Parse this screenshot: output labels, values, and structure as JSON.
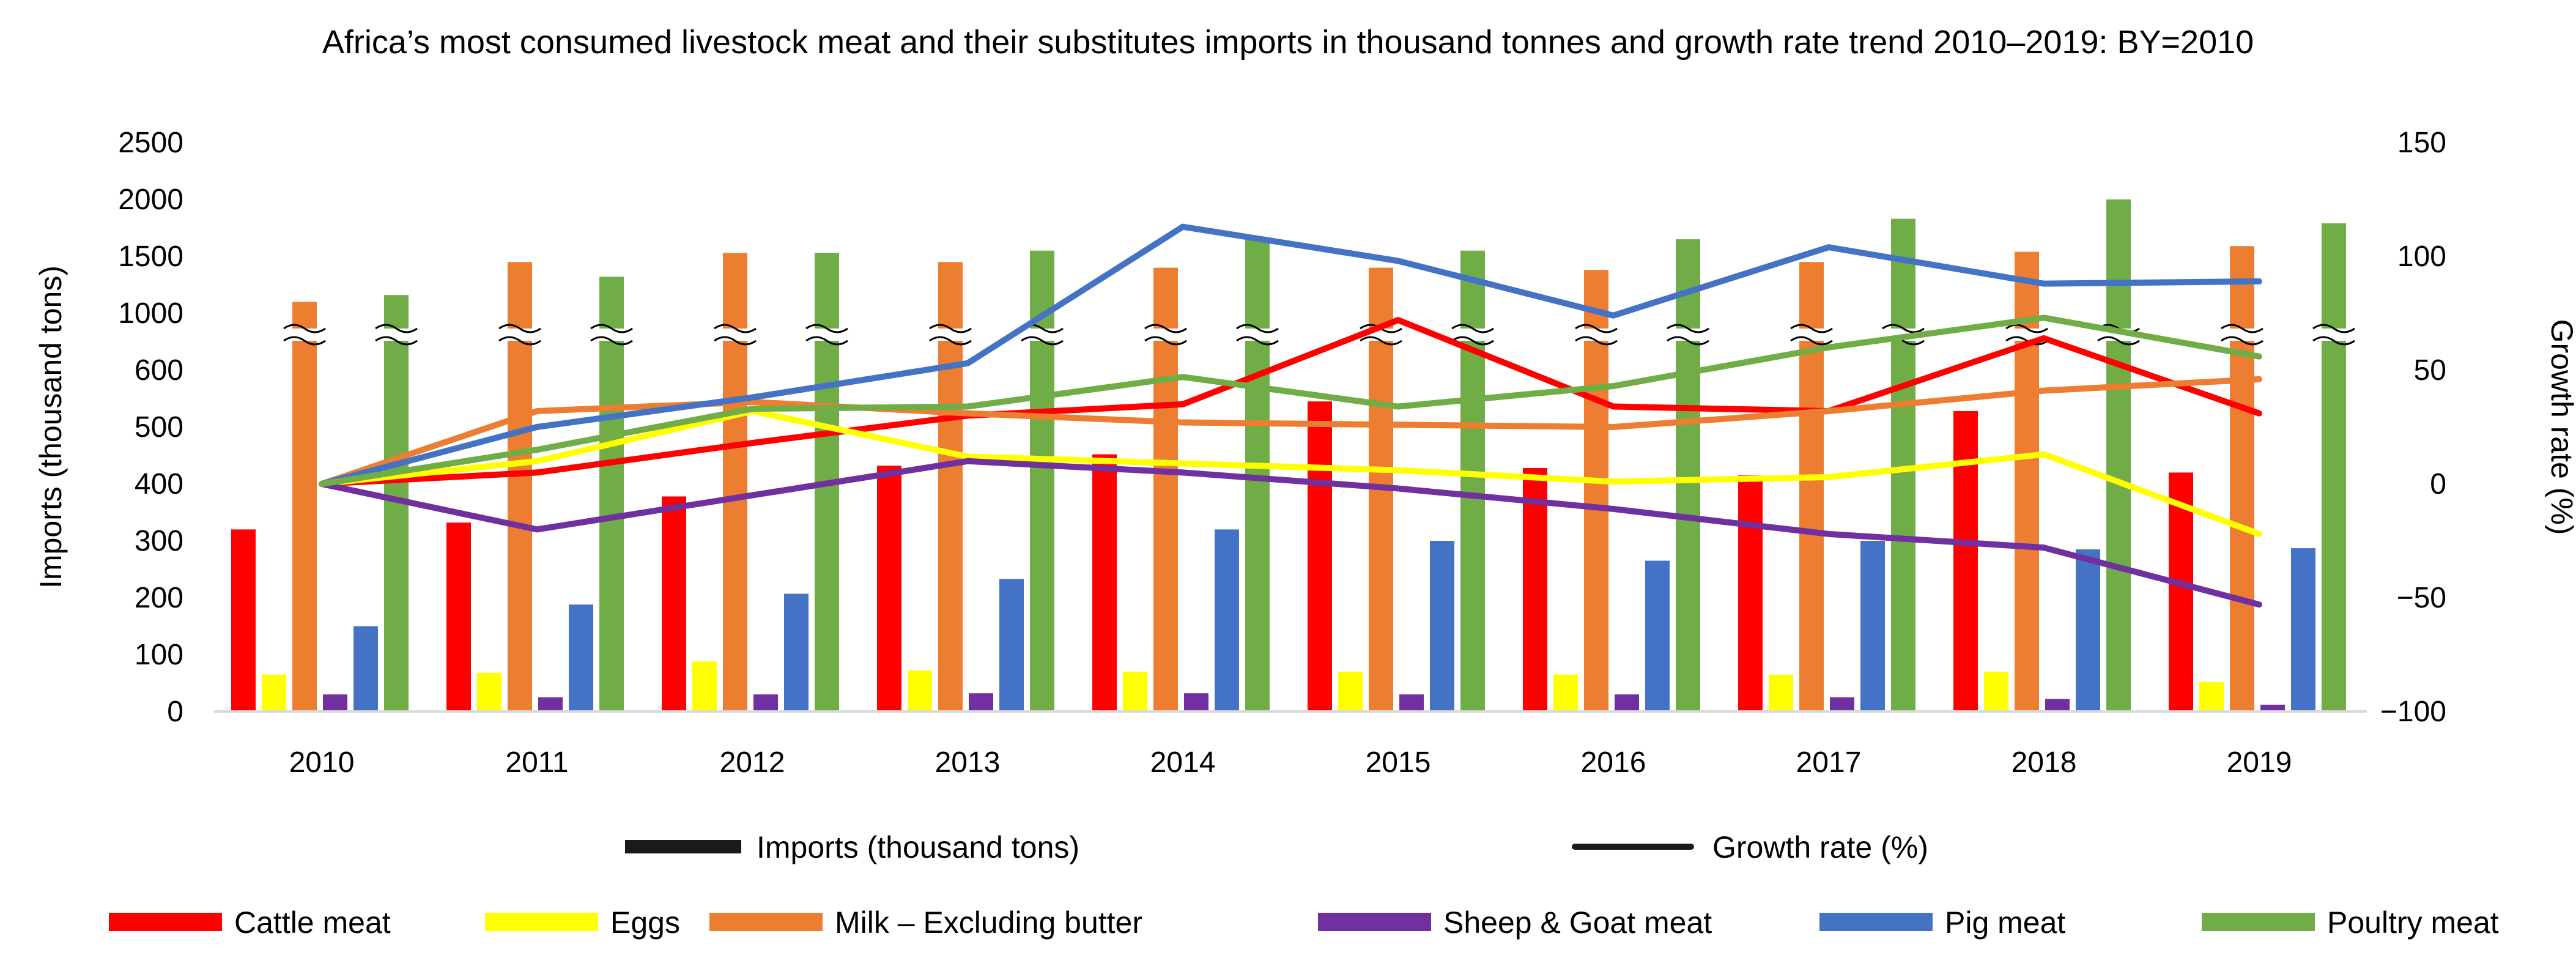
{
  "chart_data": {
    "type": "bar",
    "title": "Africa’s most consumed livestock meat and their substitutes imports in thousand tonnes and growth rate trend 2010–2019: BY=2010",
    "categories": [
      "2010",
      "2011",
      "2012",
      "2013",
      "2014",
      "2015",
      "2016",
      "2017",
      "2018",
      "2019"
    ],
    "ylabel": "Imports (thousand tons)",
    "y2label": "Growth rate (%)",
    "y_ticks": [
      "0",
      "100",
      "200",
      "300",
      "400",
      "500",
      "600",
      "1000",
      "1500",
      "2000",
      "2500"
    ],
    "y_tick_values": [
      0,
      100,
      200,
      300,
      400,
      500,
      600,
      1000,
      1500,
      2000,
      2500
    ],
    "y_axis_break": "between 600 and 1000",
    "y2_ticks": [
      "−100",
      "−50",
      "0",
      "50",
      "100",
      "150"
    ],
    "y2_tick_values": [
      -100,
      -50,
      0,
      50,
      100,
      150
    ],
    "ylim": [
      0,
      2500
    ],
    "y2lim": [
      -100,
      150
    ],
    "series": [
      {
        "name": "Cattle meat",
        "color": "#ff0000",
        "values": [
          320,
          332,
          378,
          432,
          452,
          545,
          428,
          415,
          528,
          420
        ],
        "growth": [
          0,
          5,
          18,
          30,
          35,
          72,
          34,
          32,
          64,
          31
        ]
      },
      {
        "name": "Eggs",
        "color": "#ffff00",
        "values": [
          65,
          68,
          88,
          72,
          70,
          70,
          65,
          65,
          70,
          52
        ],
        "growth": [
          0,
          10,
          32,
          12,
          9,
          6,
          1,
          3,
          13,
          -22
        ]
      },
      {
        "name": "Milk – Excluding butter",
        "color": "#ed7d31",
        "values": [
          1100,
          1450,
          1530,
          1450,
          1400,
          1400,
          1380,
          1450,
          1540,
          1590
        ],
        "growth": [
          0,
          32,
          36,
          31,
          27,
          26,
          25,
          32,
          41,
          46
        ]
      },
      {
        "name": "Sheep & Goat meat",
        "color": "#7030a0",
        "values": [
          30,
          25,
          30,
          32,
          32,
          30,
          30,
          25,
          22,
          12
        ],
        "growth": [
          0,
          -20,
          -5,
          10,
          5,
          -2,
          -11,
          -22,
          -28,
          -53
        ]
      },
      {
        "name": "Pig meat",
        "color": "#4472c4",
        "values": [
          150,
          188,
          207,
          233,
          320,
          300,
          265,
          300,
          285,
          287
        ],
        "growth": [
          0,
          25,
          38,
          53,
          113,
          98,
          74,
          104,
          88,
          89
        ]
      },
      {
        "name": "Poultry meat",
        "color": "#70ad47",
        "values": [
          1160,
          1320,
          1530,
          1550,
          1650,
          1550,
          1650,
          1830,
          2000,
          1790
        ],
        "growth": [
          0,
          15,
          33,
          34,
          47,
          34,
          43,
          60,
          73,
          56
        ]
      }
    ],
    "legend_types": [
      {
        "label": "Imports (thousand tons)"
      },
      {
        "label": "Growth rate (%)"
      }
    ],
    "legend_position": "bottom"
  }
}
